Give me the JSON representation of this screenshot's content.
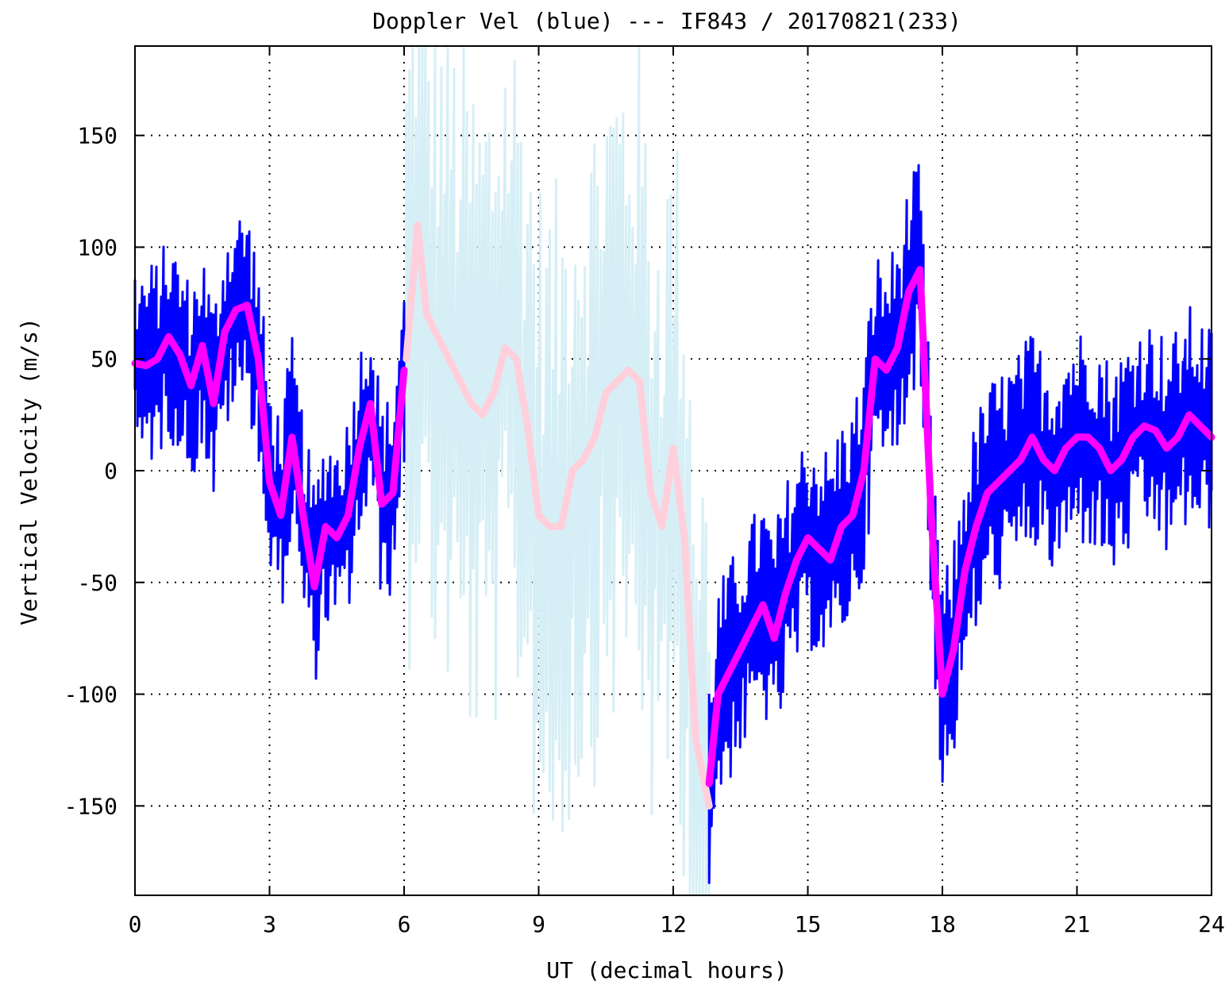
{
  "chart_data": {
    "type": "line",
    "title": "Doppler Vel (blue) --- IF843 / 20170821(233)",
    "xlabel": "UT (decimal hours)",
    "ylabel": "Vertical Velocity (m/s)",
    "xlim": [
      0,
      24
    ],
    "ylim": [
      -190,
      190
    ],
    "xticks": [
      0,
      3,
      6,
      9,
      12,
      15,
      18,
      21,
      24
    ],
    "yticks": [
      150,
      100,
      50,
      0,
      -50,
      -100,
      -150
    ],
    "grid": true,
    "legend": "none",
    "colors": {
      "raw_valid": "#0000ff",
      "raw_flagged": "#d6eff6",
      "smoothed_valid": "#ff00ff",
      "smoothed_flagged": "#ffd0dc",
      "grid": "#000000",
      "axes": "#000000"
    },
    "series": [
      {
        "color": "#0000ff",
        "note_range_hours": [
          [
            0,
            6.05
          ],
          [
            12.8,
            24
          ]
        ],
        "x": [
          0.0,
          0.25,
          0.5,
          0.75,
          1.0,
          1.25,
          1.5,
          1.75,
          2.0,
          2.25,
          2.5,
          2.75,
          3.0,
          3.25,
          3.5,
          3.75,
          4.0,
          4.25,
          4.5,
          4.75,
          5.0,
          5.25,
          5.5,
          5.75,
          6.0,
          12.8,
          13.0,
          13.25,
          13.5,
          13.75,
          14.0,
          14.25,
          14.5,
          14.75,
          15.0,
          15.25,
          15.5,
          15.75,
          16.0,
          16.25,
          16.5,
          16.75,
          17.0,
          17.25,
          17.5,
          17.75,
          18.0,
          18.25,
          18.5,
          18.75,
          19.0,
          19.25,
          19.5,
          19.75,
          20.0,
          20.25,
          20.5,
          20.75,
          21.0,
          21.25,
          21.5,
          21.75,
          22.0,
          22.25,
          22.5,
          22.75,
          23.0,
          23.25,
          23.5,
          23.75,
          24.0
        ],
        "y": [
          48,
          47,
          50,
          60,
          52,
          38,
          56,
          30,
          62,
          72,
          74,
          50,
          -5,
          -20,
          15,
          -20,
          -52,
          -25,
          -30,
          -20,
          10,
          30,
          -15,
          -10,
          45,
          -140,
          -100,
          -90,
          -80,
          -70,
          -60,
          -75,
          -55,
          -40,
          -30,
          -35,
          -40,
          -25,
          -20,
          0,
          50,
          45,
          55,
          80,
          90,
          -20,
          -100,
          -80,
          -45,
          -25,
          -10,
          -5,
          0,
          5,
          15,
          5,
          0,
          10,
          15,
          15,
          10,
          0,
          5,
          15,
          20,
          18,
          10,
          15,
          25,
          20,
          15
        ]
      },
      {
        "color": "#d6eff6",
        "note_range_hours": [
          [
            6.05,
            12.8
          ]
        ],
        "x": [
          6.05,
          6.3,
          6.5,
          6.75,
          7.0,
          7.25,
          7.5,
          7.75,
          8.0,
          8.25,
          8.5,
          8.75,
          9.0,
          9.25,
          9.5,
          9.75,
          10.0,
          10.25,
          10.5,
          10.75,
          11.0,
          11.25,
          11.5,
          11.75,
          12.0,
          12.25,
          12.5,
          12.8
        ],
        "y": [
          50,
          110,
          70,
          60,
          50,
          40,
          30,
          25,
          35,
          55,
          50,
          20,
          -20,
          -25,
          -25,
          0,
          5,
          15,
          35,
          40,
          45,
          40,
          -10,
          -25,
          10,
          -30,
          -120,
          -150
        ]
      },
      {
        "color": "#ff00ff",
        "x": [
          0.0,
          0.25,
          0.5,
          0.75,
          1.0,
          1.25,
          1.5,
          1.75,
          2.0,
          2.25,
          2.5,
          2.75,
          3.0,
          3.25,
          3.5,
          3.75,
          4.0,
          4.25,
          4.5,
          4.75,
          5.0,
          5.25,
          5.5,
          5.75,
          6.0,
          12.8,
          13.0,
          13.25,
          13.5,
          13.75,
          14.0,
          14.25,
          14.5,
          14.75,
          15.0,
          15.25,
          15.5,
          15.75,
          16.0,
          16.25,
          16.5,
          16.75,
          17.0,
          17.25,
          17.5,
          17.75,
          18.0,
          18.25,
          18.5,
          18.75,
          19.0,
          19.25,
          19.5,
          19.75,
          20.0,
          20.25,
          20.5,
          20.75,
          21.0,
          21.25,
          21.5,
          21.75,
          22.0,
          22.25,
          22.5,
          22.75,
          23.0,
          23.25,
          23.5,
          23.75,
          24.0
        ],
        "y": [
          48,
          47,
          50,
          60,
          52,
          38,
          56,
          30,
          62,
          72,
          74,
          50,
          -5,
          -20,
          15,
          -20,
          -52,
          -25,
          -30,
          -20,
          10,
          30,
          -15,
          -10,
          45,
          -140,
          -100,
          -90,
          -80,
          -70,
          -60,
          -75,
          -55,
          -40,
          -30,
          -35,
          -40,
          -25,
          -20,
          0,
          50,
          45,
          55,
          80,
          90,
          -20,
          -100,
          -80,
          -45,
          -25,
          -10,
          -5,
          0,
          5,
          15,
          5,
          0,
          10,
          15,
          15,
          10,
          0,
          5,
          15,
          20,
          18,
          10,
          15,
          25,
          20,
          15
        ]
      },
      {
        "color": "#ffd0dc",
        "x": [
          6.05,
          6.3,
          6.5,
          6.75,
          7.0,
          7.25,
          7.5,
          7.75,
          8.0,
          8.25,
          8.5,
          8.75,
          9.0,
          9.25,
          9.5,
          9.75,
          10.0,
          10.25,
          10.5,
          10.75,
          11.0,
          11.25,
          11.5,
          11.75,
          12.0,
          12.25,
          12.5,
          12.8
        ],
        "y": [
          50,
          110,
          70,
          60,
          50,
          40,
          30,
          25,
          35,
          55,
          50,
          20,
          -20,
          -25,
          -25,
          0,
          5,
          15,
          35,
          40,
          45,
          40,
          -10,
          -25,
          10,
          -30,
          -120,
          -150
        ]
      }
    ]
  }
}
